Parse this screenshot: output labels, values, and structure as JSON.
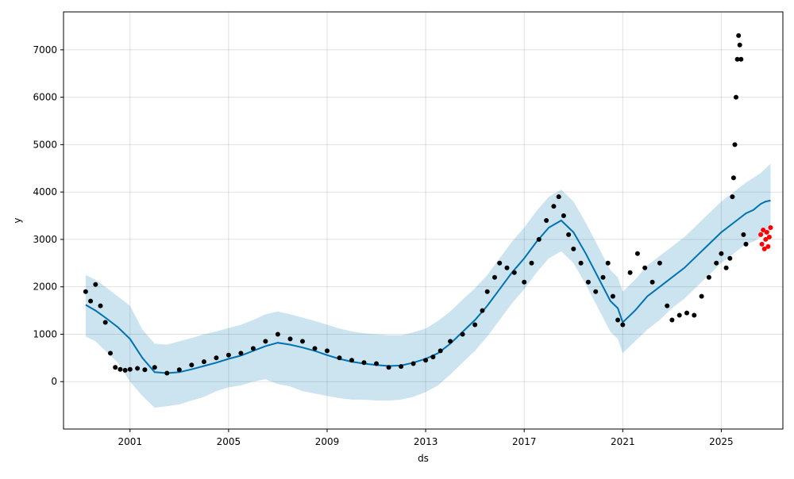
{
  "chart_data": {
    "type": "line",
    "title": "",
    "xlabel": "ds",
    "ylabel": "y",
    "xlim": [
      1998.3,
      2027.5
    ],
    "ylim": [
      -1000,
      7800
    ],
    "x_ticks": [
      2001,
      2005,
      2009,
      2013,
      2017,
      2021,
      2025
    ],
    "x_tick_labels": [
      "2001",
      "2005",
      "2009",
      "2013",
      "2017",
      "2021",
      "2025"
    ],
    "y_ticks": [
      0,
      1000,
      2000,
      3000,
      4000,
      5000,
      6000,
      7000
    ],
    "y_tick_labels": [
      "0",
      "1000",
      "2000",
      "3000",
      "4000",
      "5000",
      "6000",
      "7000"
    ],
    "grid": true,
    "colors": {
      "observed": "#000000",
      "forecast_line": "#0072B2",
      "interval": "#0072B2",
      "test_points": "#ff0000"
    },
    "series": [
      {
        "role": "observed",
        "style": "points",
        "x": [
          1999.2,
          1999.4,
          1999.6,
          1999.8,
          2000.0,
          2000.2,
          2000.4,
          2000.6,
          2000.8,
          2001.0,
          2001.3,
          2001.6,
          2002.0,
          2002.5,
          2003.0,
          2003.5,
          2004.0,
          2004.5,
          2005.0,
          2005.5,
          2006.0,
          2006.5,
          2007.0,
          2007.5,
          2008.0,
          2008.5,
          2009.0,
          2009.5,
          2010.0,
          2010.5,
          2011.0,
          2011.5,
          2012.0,
          2012.5,
          2013.0,
          2013.3,
          2013.6,
          2014.0,
          2014.5,
          2015.0,
          2015.3,
          2015.5,
          2015.8,
          2016.0,
          2016.3,
          2016.6,
          2017.0,
          2017.3,
          2017.6,
          2017.9,
          2018.2,
          2018.4,
          2018.6,
          2018.8,
          2019.0,
          2019.3,
          2019.6,
          2019.9,
          2020.2,
          2020.4,
          2020.6,
          2020.8,
          2021.0,
          2021.3,
          2021.6,
          2021.9,
          2022.2,
          2022.5,
          2022.8,
          2023.0,
          2023.3,
          2023.6,
          2023.9,
          2024.2,
          2024.5,
          2024.8,
          2025.0,
          2025.2,
          2025.35,
          2025.45,
          2025.5,
          2025.55,
          2025.6,
          2025.65,
          2025.7,
          2025.75,
          2025.8,
          2025.9,
          2026.0
        ],
        "y": [
          1900,
          1700,
          2050,
          1600,
          1250,
          600,
          300,
          260,
          240,
          260,
          280,
          250,
          300,
          180,
          250,
          350,
          420,
          500,
          560,
          600,
          700,
          850,
          1000,
          900,
          850,
          700,
          650,
          500,
          450,
          400,
          380,
          300,
          320,
          380,
          450,
          520,
          650,
          850,
          1000,
          1200,
          1500,
          1900,
          2200,
          2500,
          2400,
          2300,
          2100,
          2500,
          3000,
          3400,
          3700,
          3900,
          3500,
          3100,
          2800,
          2500,
          2100,
          1900,
          2200,
          2500,
          1800,
          1300,
          1200,
          2300,
          2700,
          2400,
          2100,
          2500,
          1600,
          1300,
          1400,
          1450,
          1400,
          1800,
          2200,
          2500,
          2700,
          2400,
          2600,
          3900,
          4300,
          5000,
          6000,
          6800,
          7300,
          7100,
          6800,
          3100,
          2900
        ]
      },
      {
        "role": "forecast",
        "style": "line",
        "x": [
          1999.2,
          1999.6,
          2000.0,
          2000.5,
          2001.0,
          2001.5,
          2002.0,
          2002.5,
          2003.0,
          2003.5,
          2004.0,
          2004.5,
          2005.0,
          2005.5,
          2006.0,
          2006.5,
          2007.0,
          2007.5,
          2008.0,
          2008.5,
          2009.0,
          2009.5,
          2010.0,
          2010.5,
          2011.0,
          2011.5,
          2012.0,
          2012.5,
          2013.0,
          2013.5,
          2014.0,
          2014.5,
          2015.0,
          2015.5,
          2016.0,
          2016.5,
          2017.0,
          2017.5,
          2018.0,
          2018.5,
          2019.0,
          2019.5,
          2020.0,
          2020.5,
          2020.8,
          2021.0,
          2021.5,
          2022.0,
          2022.5,
          2023.0,
          2023.5,
          2024.0,
          2024.5,
          2025.0,
          2025.5,
          2026.0,
          2026.3,
          2026.6,
          2026.8,
          2027.0
        ],
        "y": [
          1620,
          1500,
          1350,
          1150,
          900,
          500,
          200,
          180,
          200,
          260,
          330,
          400,
          480,
          550,
          650,
          750,
          820,
          780,
          720,
          650,
          560,
          480,
          420,
          380,
          350,
          330,
          340,
          400,
          480,
          600,
          800,
          1050,
          1300,
          1600,
          1950,
          2300,
          2600,
          2950,
          3250,
          3400,
          3150,
          2700,
          2200,
          1700,
          1550,
          1250,
          1500,
          1800,
          2000,
          2200,
          2400,
          2650,
          2900,
          3150,
          3350,
          3550,
          3620,
          3750,
          3800,
          3820
        ]
      },
      {
        "role": "interval",
        "style": "band",
        "x": [
          1999.2,
          1999.6,
          2000.0,
          2000.5,
          2001.0,
          2001.5,
          2002.0,
          2002.5,
          2003.0,
          2003.5,
          2004.0,
          2004.5,
          2005.0,
          2005.5,
          2006.0,
          2006.5,
          2007.0,
          2007.5,
          2008.0,
          2008.5,
          2009.0,
          2009.5,
          2010.0,
          2010.5,
          2011.0,
          2011.5,
          2012.0,
          2012.5,
          2013.0,
          2013.5,
          2014.0,
          2014.5,
          2015.0,
          2015.5,
          2016.0,
          2016.5,
          2017.0,
          2017.5,
          2018.0,
          2018.5,
          2019.0,
          2019.5,
          2020.0,
          2020.5,
          2020.8,
          2021.0,
          2021.5,
          2022.0,
          2022.5,
          2023.0,
          2023.5,
          2024.0,
          2024.5,
          2025.0,
          2025.5,
          2026.0,
          2026.3,
          2026.6,
          2026.8,
          2027.0
        ],
        "lower": [
          950,
          850,
          650,
          400,
          0,
          -300,
          -550,
          -520,
          -480,
          -400,
          -320,
          -200,
          -120,
          -80,
          0,
          50,
          -50,
          -100,
          -200,
          -250,
          -300,
          -350,
          -380,
          -380,
          -400,
          -400,
          -380,
          -320,
          -220,
          -80,
          150,
          400,
          650,
          950,
          1300,
          1650,
          1950,
          2300,
          2600,
          2750,
          2500,
          2050,
          1550,
          1050,
          900,
          600,
          850,
          1100,
          1300,
          1550,
          1750,
          2000,
          2250,
          2500,
          2700,
          2900,
          2950,
          3050,
          3100,
          3150
        ],
        "upper": [
          2250,
          2150,
          2000,
          1800,
          1600,
          1100,
          800,
          780,
          850,
          920,
          1000,
          1060,
          1130,
          1200,
          1300,
          1420,
          1480,
          1420,
          1350,
          1280,
          1200,
          1120,
          1060,
          1020,
          1000,
          980,
          980,
          1040,
          1120,
          1280,
          1480,
          1730,
          1970,
          2250,
          2600,
          2950,
          3250,
          3600,
          3900,
          4050,
          3800,
          3350,
          2850,
          2350,
          2200,
          1900,
          2150,
          2450,
          2650,
          2850,
          3050,
          3300,
          3550,
          3800,
          4000,
          4200,
          4300,
          4400,
          4500,
          4600
        ]
      },
      {
        "role": "test",
        "style": "points",
        "x": [
          2026.6,
          2026.65,
          2026.7,
          2026.75,
          2026.8,
          2026.85,
          2026.9,
          2026.95,
          2027.0
        ],
        "y": [
          3100,
          2900,
          3200,
          2800,
          3000,
          3150,
          2850,
          3050,
          3250
        ]
      }
    ]
  }
}
